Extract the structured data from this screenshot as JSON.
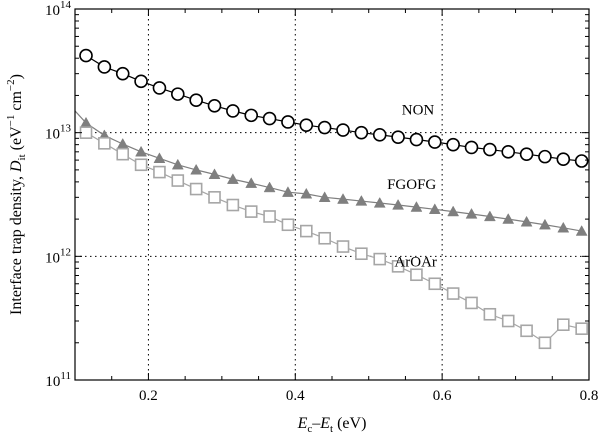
{
  "chart_data": {
    "type": "line",
    "xlabel": {
      "italic_main": "E",
      "sub1": "c",
      "dash": "–",
      "italic_main2": "E",
      "sub2": "t",
      "unit": " (eV)"
    },
    "ylabel": {
      "prefix": "Interface trap density, ",
      "italic": "D",
      "sub": "it",
      "unit_open": " (eV",
      "exp1": "−1",
      "mid": " cm",
      "exp2": "−2",
      "close": ")"
    },
    "xlim": [
      0.1,
      0.8
    ],
    "ylim_log10": [
      11,
      14
    ],
    "log_y": true,
    "grid": "dotted",
    "x_ticks": [
      "0.2",
      "0.4",
      "0.6",
      "0.8"
    ],
    "x_tick_values": [
      0.2,
      0.4,
      0.6,
      0.8
    ],
    "y_ticks": [
      {
        "base": "10",
        "exp": "11",
        "value": 11
      },
      {
        "base": "10",
        "exp": "12",
        "value": 12
      },
      {
        "base": "10",
        "exp": "13",
        "value": 13
      },
      {
        "base": "10",
        "exp": "14",
        "value": 14
      }
    ],
    "series": [
      {
        "name": "NON",
        "marker": "open-circle",
        "color": "#000000",
        "x": [
          0.115,
          0.14,
          0.165,
          0.19,
          0.215,
          0.24,
          0.265,
          0.29,
          0.315,
          0.34,
          0.365,
          0.39,
          0.415,
          0.44,
          0.465,
          0.49,
          0.515,
          0.54,
          0.565,
          0.59,
          0.615,
          0.64,
          0.665,
          0.69,
          0.715,
          0.74,
          0.765,
          0.79
        ],
        "y": [
          42000000000000.0,
          34000000000000.0,
          30000000000000.0,
          26000000000000.0,
          23000000000000.0,
          20500000000000.0,
          18300000000000.0,
          16500000000000.0,
          15000000000000.0,
          13800000000000.0,
          13000000000000.0,
          12200000000000.0,
          11500000000000.0,
          11000000000000.0,
          10500000000000.0,
          10000000000000.0,
          9600000000000.0,
          9200000000000.0,
          8800000000000.0,
          8400000000000.0,
          8000000000000.0,
          7600000000000.0,
          7300000000000.0,
          7000000000000.0,
          6700000000000.0,
          6400000000000.0,
          6100000000000.0,
          5900000000000.0
        ]
      },
      {
        "name": "FGOFG",
        "marker": "filled-triangle",
        "color": "#7f7f7f",
        "x": [
          0.115,
          0.14,
          0.165,
          0.19,
          0.215,
          0.24,
          0.265,
          0.29,
          0.315,
          0.34,
          0.365,
          0.39,
          0.415,
          0.44,
          0.465,
          0.49,
          0.515,
          0.54,
          0.565,
          0.59,
          0.615,
          0.64,
          0.665,
          0.69,
          0.715,
          0.74,
          0.765,
          0.79
        ],
        "y": [
          12000000000000.0,
          9500000000000.0,
          8100000000000.0,
          7000000000000.0,
          6200000000000.0,
          5500000000000.0,
          5000000000000.0,
          4600000000000.0,
          4200000000000.0,
          3900000000000.0,
          3600000000000.0,
          3300000000000.0,
          3200000000000.0,
          3000000000000.0,
          2900000000000.0,
          2800000000000.0,
          2700000000000.0,
          2600000000000.0,
          2500000000000.0,
          2400000000000.0,
          2300000000000.0,
          2200000000000.0,
          2100000000000.0,
          2000000000000.0,
          1900000000000.0,
          1800000000000.0,
          1700000000000.0,
          1600000000000.0
        ],
        "line_start": {
          "x": 0.1,
          "y": 15000000000000.0
        }
      },
      {
        "name": "ArOAr",
        "marker": "open-square",
        "color": "#a6a6a6",
        "x": [
          0.115,
          0.14,
          0.165,
          0.19,
          0.215,
          0.24,
          0.265,
          0.29,
          0.315,
          0.34,
          0.365,
          0.39,
          0.415,
          0.44,
          0.465,
          0.49,
          0.515,
          0.54,
          0.565,
          0.59,
          0.615,
          0.64,
          0.665,
          0.69,
          0.715,
          0.74,
          0.765,
          0.79
        ],
        "y": [
          10000000000000.0,
          8200000000000.0,
          6700000000000.0,
          5500000000000.0,
          4800000000000.0,
          4100000000000.0,
          3500000000000.0,
          3000000000000.0,
          2600000000000.0,
          2300000000000.0,
          2100000000000.0,
          1800000000000.0,
          1600000000000.0,
          1400000000000.0,
          1200000000000.0,
          1050000000000.0,
          950000000000.0,
          830000000000.0,
          710000000000.0,
          600000000000.0,
          500000000000.0,
          420000000000.0,
          340000000000.0,
          300000000000.0,
          250000000000.0,
          200000000000.0,
          280000000000.0,
          260000000000.0
        ]
      }
    ]
  }
}
